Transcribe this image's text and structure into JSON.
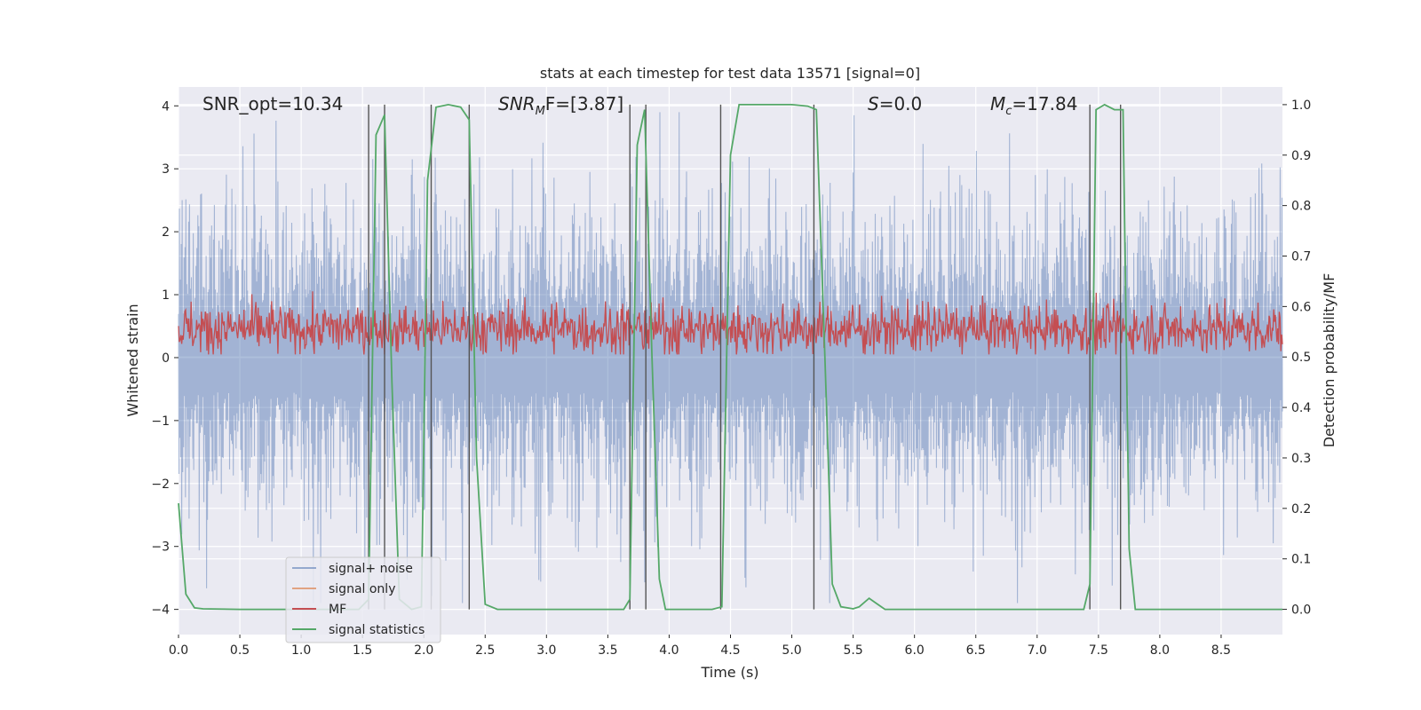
{
  "chart_data": {
    "type": "line",
    "title": "stats at each timestep for test data 13571 [signal=0]",
    "xlabel": "Time (s)",
    "ylabel_left": "Whitened strain",
    "ylabel_right": "Detection probability/MF",
    "xlim": [
      0.0,
      9.0
    ],
    "ylim_left": [
      -4.4,
      4.3
    ],
    "ylim_right": [
      -0.05,
      1.035
    ],
    "grid": true,
    "legend_placement": "lower-left",
    "x_ticks": [
      0.0,
      0.5,
      1.0,
      1.5,
      2.0,
      2.5,
      3.0,
      3.5,
      4.0,
      4.5,
      5.0,
      5.5,
      6.0,
      6.5,
      7.0,
      7.5,
      8.0,
      8.5
    ],
    "x_tick_labels": [
      "0.0",
      "0.5",
      "1.0",
      "1.5",
      "2.0",
      "2.5",
      "3.0",
      "3.5",
      "4.0",
      "4.5",
      "5.0",
      "5.5",
      "6.0",
      "6.5",
      "7.0",
      "7.5",
      "8.0",
      "8.5"
    ],
    "y_ticks_left": [
      4,
      3,
      2,
      1,
      0,
      -1,
      -2,
      -3,
      -4
    ],
    "y_tick_labels_left": [
      "4",
      "3",
      "2",
      "1",
      "0",
      "−1",
      "−2",
      "−3",
      "−4"
    ],
    "y_ticks_right": [
      1.0,
      0.9,
      0.8,
      0.7,
      0.6,
      0.5,
      0.4,
      0.3,
      0.2,
      0.1,
      0.0
    ],
    "y_tick_labels_right": [
      "1.0",
      "0.9",
      "0.8",
      "0.7",
      "0.6",
      "0.5",
      "0.4",
      "0.3",
      "0.2",
      "0.1",
      "0.0"
    ],
    "annotations": [
      {
        "id": "snr-opt",
        "text": "SNR_opt=10.34",
        "x": 0.2
      },
      {
        "id": "snr-mf",
        "base": "SNR",
        "sub": "M",
        "tail": "F=[3.87]",
        "x": 2.6
      },
      {
        "id": "s-stat",
        "base": "S",
        "tail": "=0.0",
        "x": 5.6
      },
      {
        "id": "mc",
        "base": "M",
        "sub": "c",
        "tail": "=17.84",
        "x": 6.6
      }
    ],
    "series": [
      {
        "name": "signal+ noise",
        "color": "#4c72b0",
        "description_range": [
          -4.0,
          3.9
        ]
      },
      {
        "name": "signal only",
        "color": "#dd8452"
      },
      {
        "name": "MF",
        "color": "#c44e52",
        "range_right_axis": [
          0.52,
          0.62
        ]
      },
      {
        "name": "signal statistics",
        "color": "#55a868",
        "axis": "right",
        "points": [
          [
            0.0,
            0.21
          ],
          [
            0.06,
            0.03
          ],
          [
            0.13,
            0.003
          ],
          [
            0.2,
            0.001
          ],
          [
            0.5,
            0.0
          ],
          [
            1.0,
            0.0
          ],
          [
            1.47,
            0.0
          ],
          [
            1.55,
            0.02
          ],
          [
            1.61,
            0.94
          ],
          [
            1.68,
            0.98
          ],
          [
            1.74,
            0.45
          ],
          [
            1.8,
            0.02
          ],
          [
            1.9,
            0.0
          ],
          [
            1.98,
            0.005
          ],
          [
            2.03,
            0.85
          ],
          [
            2.1,
            0.995
          ],
          [
            2.2,
            1.0
          ],
          [
            2.3,
            0.995
          ],
          [
            2.37,
            0.97
          ],
          [
            2.43,
            0.3
          ],
          [
            2.5,
            0.01
          ],
          [
            2.6,
            0.0
          ],
          [
            3.0,
            0.0
          ],
          [
            3.63,
            0.0
          ],
          [
            3.68,
            0.02
          ],
          [
            3.74,
            0.92
          ],
          [
            3.8,
            0.99
          ],
          [
            3.86,
            0.5
          ],
          [
            3.92,
            0.06
          ],
          [
            3.97,
            0.0
          ],
          [
            4.35,
            0.0
          ],
          [
            4.43,
            0.005
          ],
          [
            4.5,
            0.9
          ],
          [
            4.57,
            1.0
          ],
          [
            5.0,
            1.0
          ],
          [
            5.13,
            0.997
          ],
          [
            5.2,
            0.99
          ],
          [
            5.27,
            0.5
          ],
          [
            5.33,
            0.05
          ],
          [
            5.4,
            0.005
          ],
          [
            5.5,
            0.001
          ],
          [
            5.55,
            0.005
          ],
          [
            5.63,
            0.022
          ],
          [
            5.7,
            0.01
          ],
          [
            5.76,
            0.0
          ],
          [
            6.5,
            0.0
          ],
          [
            7.38,
            0.0
          ],
          [
            7.43,
            0.05
          ],
          [
            7.48,
            0.99
          ],
          [
            7.55,
            1.0
          ],
          [
            7.63,
            0.99
          ],
          [
            7.7,
            0.99
          ],
          [
            7.75,
            0.12
          ],
          [
            7.8,
            0.0
          ],
          [
            8.5,
            0.0
          ],
          [
            9.0,
            0.0
          ]
        ]
      }
    ],
    "vertical_lines_x": [
      1.55,
      1.68,
      2.06,
      2.37,
      3.68,
      3.81,
      4.42,
      5.18,
      7.43,
      7.68
    ]
  }
}
